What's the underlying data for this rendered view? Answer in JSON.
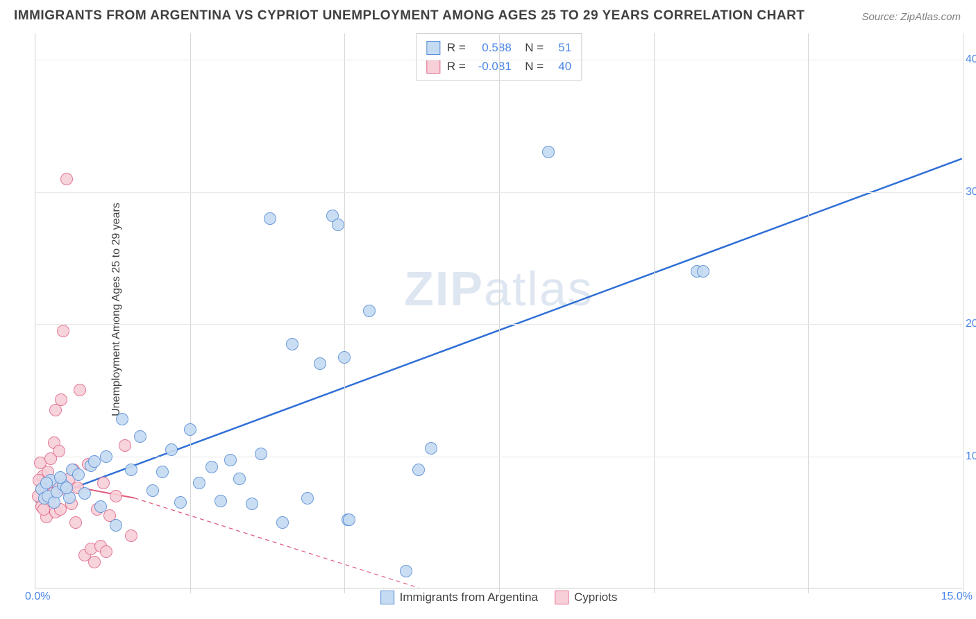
{
  "title": "IMMIGRANTS FROM ARGENTINA VS CYPRIOT UNEMPLOYMENT AMONG AGES 25 TO 29 YEARS CORRELATION CHART",
  "source": "Source: ZipAtlas.com",
  "watermark": "ZIPatlas",
  "y_axis_label": "Unemployment Among Ages 25 to 29 years",
  "chart": {
    "type": "scatter",
    "xlim": [
      0,
      15
    ],
    "ylim": [
      0,
      42
    ],
    "x_ticks": [
      0,
      15
    ],
    "x_tick_labels": [
      "0.0%",
      "15.0%"
    ],
    "y_ticks": [
      10,
      20,
      30,
      40
    ],
    "y_tick_labels": [
      "10.0%",
      "20.0%",
      "30.0%",
      "40.0%"
    ],
    "grid_v_positions": [
      2.5,
      5.0,
      7.5,
      10.0,
      12.5,
      15.0
    ],
    "grid_h_positions": [
      10,
      20,
      30,
      40
    ],
    "background_color": "#ffffff",
    "grid_color": "#e0e0e0",
    "axis_color": "#cccccc",
    "tick_label_color": "#4a86e8",
    "marker_radius": 9,
    "marker_stroke_width": 1.5,
    "series": [
      {
        "name": "Immigrants from Argentina",
        "fill": "#c5dbf2",
        "stroke": "#5b8fd6",
        "R": "0.588",
        "N": "51",
        "trend": {
          "x1": 0,
          "y1": 6.5,
          "x2": 15,
          "y2": 32.5,
          "color": "#2f6fd6",
          "width": 2.5,
          "dash": "none",
          "extrapolate": false
        },
        "points": [
          [
            0.1,
            7.5
          ],
          [
            0.15,
            6.8
          ],
          [
            0.2,
            7.0
          ],
          [
            0.25,
            8.2
          ],
          [
            0.3,
            6.5
          ],
          [
            0.35,
            7.3
          ],
          [
            0.45,
            7.8
          ],
          [
            0.55,
            6.9
          ],
          [
            0.6,
            9.0
          ],
          [
            0.7,
            8.6
          ],
          [
            0.8,
            7.2
          ],
          [
            0.9,
            9.3
          ],
          [
            0.95,
            9.6
          ],
          [
            1.05,
            6.2
          ],
          [
            1.15,
            10.0
          ],
          [
            1.3,
            4.8
          ],
          [
            1.4,
            12.8
          ],
          [
            1.55,
            9.0
          ],
          [
            1.7,
            11.5
          ],
          [
            1.9,
            7.4
          ],
          [
            2.05,
            8.8
          ],
          [
            2.2,
            10.5
          ],
          [
            2.35,
            6.5
          ],
          [
            2.5,
            12.0
          ],
          [
            2.65,
            8.0
          ],
          [
            2.85,
            9.2
          ],
          [
            3.0,
            6.6
          ],
          [
            3.15,
            9.7
          ],
          [
            3.3,
            8.3
          ],
          [
            3.5,
            6.4
          ],
          [
            3.65,
            10.2
          ],
          [
            3.8,
            28.0
          ],
          [
            4.0,
            5.0
          ],
          [
            4.15,
            18.5
          ],
          [
            4.4,
            6.8
          ],
          [
            4.6,
            17.0
          ],
          [
            4.8,
            28.2
          ],
          [
            4.9,
            27.5
          ],
          [
            5.0,
            17.5
          ],
          [
            5.05,
            5.2
          ],
          [
            5.08,
            5.2
          ],
          [
            5.4,
            21.0
          ],
          [
            6.0,
            1.3
          ],
          [
            6.2,
            9.0
          ],
          [
            6.4,
            10.6
          ],
          [
            8.3,
            33.0
          ],
          [
            10.7,
            24.0
          ],
          [
            10.8,
            24.0
          ],
          [
            0.5,
            7.6
          ],
          [
            0.4,
            8.4
          ],
          [
            0.18,
            8.0
          ]
        ]
      },
      {
        "name": "Cypriots",
        "fill": "#f7cfd8",
        "stroke": "#e06b8b",
        "R": "-0.081",
        "N": "40",
        "trend": {
          "x1": 0,
          "y1": 8.2,
          "x2": 1.6,
          "y2": 6.8,
          "color": "#e05a7a",
          "width": 2,
          "dash": "none",
          "extrapolate": true,
          "ext_x2": 6.2,
          "ext_y2": 0,
          "ext_dash": "6 5"
        },
        "points": [
          [
            0.05,
            7.0
          ],
          [
            0.08,
            9.5
          ],
          [
            0.1,
            6.2
          ],
          [
            0.12,
            8.5
          ],
          [
            0.15,
            7.8
          ],
          [
            0.18,
            5.4
          ],
          [
            0.2,
            8.8
          ],
          [
            0.22,
            6.6
          ],
          [
            0.25,
            9.8
          ],
          [
            0.28,
            7.2
          ],
          [
            0.3,
            11.0
          ],
          [
            0.32,
            5.8
          ],
          [
            0.35,
            8.0
          ],
          [
            0.38,
            10.4
          ],
          [
            0.4,
            6.0
          ],
          [
            0.42,
            14.3
          ],
          [
            0.45,
            19.5
          ],
          [
            0.48,
            7.5
          ],
          [
            0.5,
            31.0
          ],
          [
            0.55,
            8.3
          ],
          [
            0.58,
            6.4
          ],
          [
            0.62,
            9.0
          ],
          [
            0.65,
            5.0
          ],
          [
            0.68,
            7.6
          ],
          [
            0.72,
            15.0
          ],
          [
            0.8,
            2.5
          ],
          [
            0.85,
            9.4
          ],
          [
            0.9,
            3.0
          ],
          [
            0.95,
            2.0
          ],
          [
            1.0,
            6.0
          ],
          [
            1.05,
            3.2
          ],
          [
            1.1,
            8.0
          ],
          [
            1.15,
            2.8
          ],
          [
            1.2,
            5.5
          ],
          [
            1.3,
            7.0
          ],
          [
            1.45,
            10.8
          ],
          [
            1.55,
            4.0
          ],
          [
            0.06,
            8.2
          ],
          [
            0.14,
            6.0
          ],
          [
            0.33,
            13.5
          ]
        ]
      }
    ],
    "legend": {
      "position": "bottom",
      "stats_position": "top-center"
    }
  }
}
